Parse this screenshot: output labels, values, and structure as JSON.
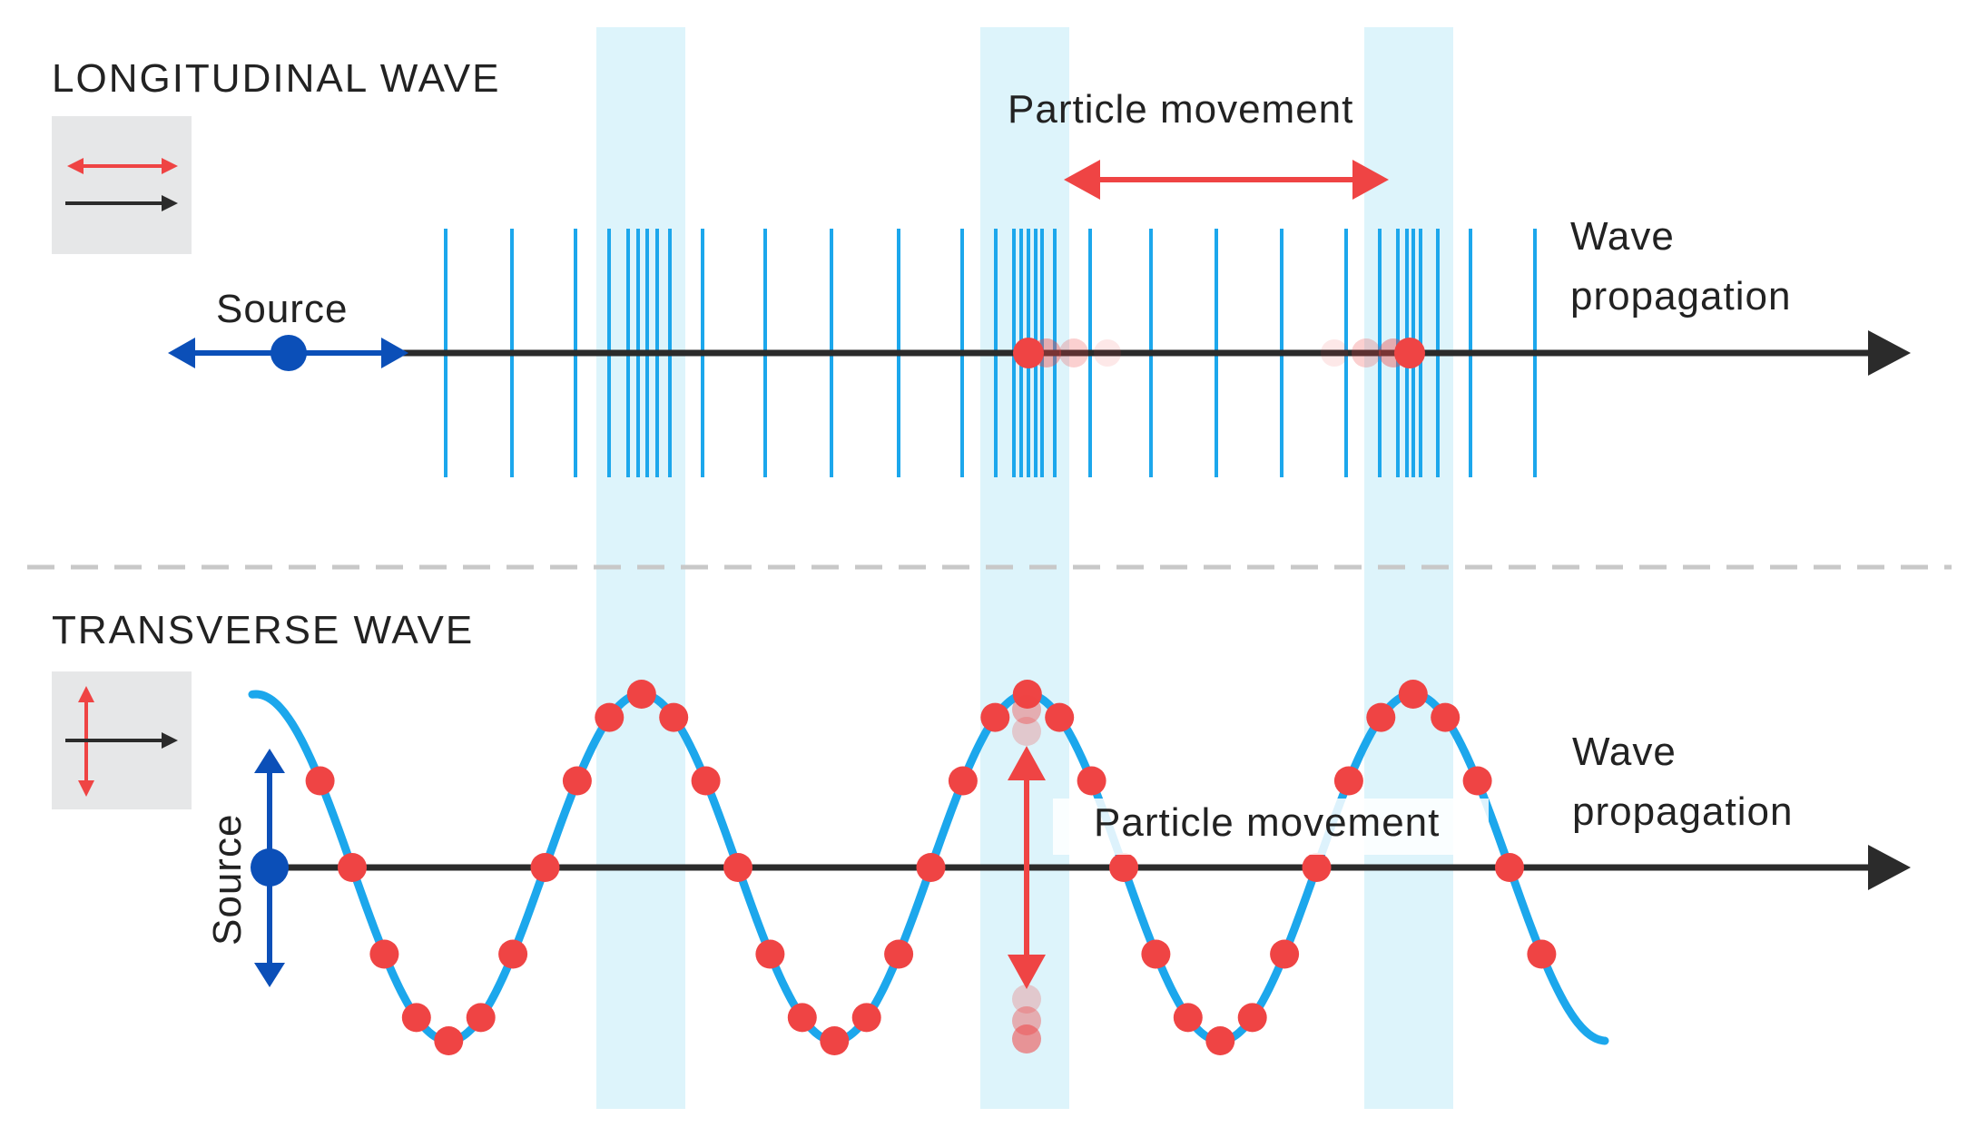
{
  "longitudinal": {
    "title": "LONGITUDINAL WAVE",
    "source_label": "Source",
    "particle_label": "Particle movement",
    "propagation_label_line1": "Wave",
    "propagation_label_line2": "propagation"
  },
  "transverse": {
    "title": "TRANSVERSE WAVE",
    "source_label": "Source",
    "particle_label": "Particle movement",
    "propagation_label_line1": "Wave",
    "propagation_label_line2": "propagation"
  },
  "colors": {
    "wave_blue": "#1ca7ec",
    "particle_red": "#ef4444",
    "source_blue": "#0b4fb8",
    "axis_dark": "#2b2b2b",
    "highlight_band": "#ddf4fb",
    "legend_bg": "#e6e7e8",
    "divider_gray": "#c8c8c8"
  },
  "icons": {
    "longitudinal_legend": "double-arrow-horizontal-icon",
    "transverse_legend": "double-arrow-vertical-icon"
  }
}
